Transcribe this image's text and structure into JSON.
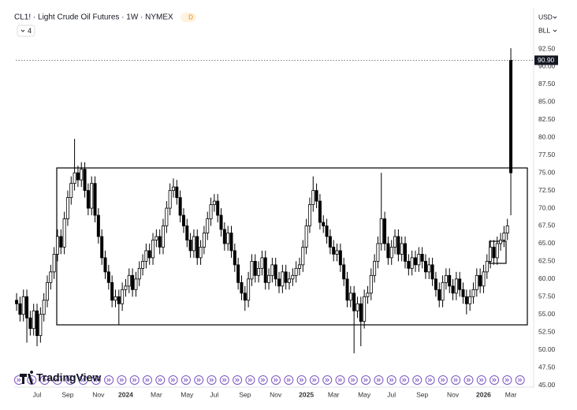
{
  "header": {
    "title": "CL1! · Light Crude Oil Futures · 1W · NYMEX",
    "badge": "D",
    "indicators": "4",
    "currency": "USD",
    "unit": "BLL",
    "logo": "TradingView"
  },
  "chart_data": {
    "type": "candlestick",
    "color": "#000000",
    "open": [
      57.0,
      56.5,
      55.0,
      57.5,
      54.5,
      53.0,
      55.5,
      52.0,
      55.0,
      57.0,
      59.5,
      61.0,
      63.5,
      66.0,
      64.5,
      68.5,
      71.5,
      73.5,
      75.0,
      74.0,
      75.5,
      72.5,
      70.0,
      73.5,
      69.0,
      66.0,
      63.0,
      61.0,
      59.5,
      57.0,
      57.5,
      56.5,
      58.5,
      59.0,
      60.5,
      58.5,
      60.0,
      61.5,
      62.5,
      64.0,
      63.0,
      65.5,
      66.0,
      64.5,
      67.5,
      70.0,
      72.5,
      73.0,
      71.5,
      69.0,
      67.5,
      65.5,
      64.0,
      66.0,
      63.0,
      64.5,
      66.5,
      68.5,
      70.5,
      71.0,
      69.0,
      67.0,
      65.0,
      66.5,
      64.0,
      62.0,
      59.5,
      58.0,
      57.0,
      60.0,
      62.5,
      60.5,
      61.5,
      63.0,
      59.5,
      60.5,
      62.0,
      60.0,
      59.0,
      61.0,
      59.5,
      60.0,
      60.5,
      61.5,
      62.0,
      64.5,
      67.5,
      70.5,
      72.5,
      71.0,
      68.0,
      67.5,
      66.0,
      64.5,
      63.5,
      64.0,
      62.0,
      60.0,
      57.0,
      58.0,
      55.5,
      56.5,
      54.0,
      57.5,
      58.0,
      60.5,
      62.5,
      65.0,
      68.5,
      65.0,
      63.0,
      64.5,
      66.0,
      63.5,
      65.0,
      62.5,
      61.5,
      63.0,
      62.0,
      63.5,
      62.5,
      61.0,
      62.0,
      60.0,
      58.5,
      57.0,
      59.5,
      60.5,
      59.0,
      58.0,
      60.0,
      58.5,
      57.5,
      56.5,
      57.5,
      58.5,
      60.5,
      59.0,
      61.0,
      62.5,
      64.5,
      63.0,
      65.0,
      65.5,
      66.5,
      75.0
    ],
    "high": [
      58,
      57.5,
      58.5,
      58.5,
      55.5,
      56.5,
      56.5,
      56,
      58,
      60.5,
      62,
      64.5,
      67,
      67,
      69.5,
      72.5,
      74.5,
      79.8,
      76,
      76.5,
      76.5,
      73.5,
      74.5,
      74.5,
      70,
      67,
      64,
      62,
      60.5,
      58.5,
      58.5,
      59.5,
      60,
      61.5,
      61.5,
      61,
      62.5,
      63.5,
      65,
      65,
      66.5,
      67,
      67,
      68.5,
      71,
      73.5,
      74.2,
      74,
      72.5,
      70,
      68.5,
      66.5,
      67,
      67,
      65.5,
      67.5,
      69.5,
      71.5,
      72,
      72,
      70,
      68,
      67.5,
      67.5,
      65,
      63,
      60.5,
      59,
      61,
      63.5,
      63.5,
      62.5,
      64,
      64,
      61.5,
      63,
      63,
      61,
      62,
      62,
      61,
      61.5,
      62.5,
      63,
      65.5,
      68.5,
      71.5,
      74.5,
      73.5,
      72,
      69,
      68.5,
      67,
      65.5,
      65,
      65,
      63,
      61,
      59,
      59,
      57.5,
      57.5,
      58.5,
      59,
      61.5,
      63.5,
      66,
      75,
      69.5,
      66,
      65.5,
      67,
      67,
      66,
      66,
      63.5,
      64,
      64,
      64.5,
      64.5,
      63.5,
      63,
      63,
      61,
      59.5,
      60.5,
      61.5,
      61.5,
      60,
      61,
      61,
      59.5,
      58.5,
      58.5,
      59.5,
      61.5,
      61.5,
      62,
      63.5,
      65.5,
      65.5,
      66,
      66.5,
      67.5,
      68.5,
      92.6
    ],
    "low": [
      55.5,
      54,
      54,
      51,
      52,
      52,
      50.5,
      51,
      54,
      56,
      58.5,
      60,
      62.5,
      63.5,
      63.5,
      67.5,
      70.5,
      72.5,
      73,
      73,
      71.5,
      69,
      69,
      68,
      65,
      62,
      60,
      58.5,
      56,
      56,
      53.5,
      55.5,
      57.5,
      58,
      57.5,
      57.5,
      59,
      60.5,
      61.5,
      62,
      62,
      64.5,
      63.5,
      63.5,
      66.5,
      69,
      71.5,
      70.5,
      68,
      66.5,
      64.5,
      63,
      63,
      62,
      62,
      63.5,
      65.5,
      67.5,
      69.5,
      68,
      66,
      64,
      64,
      63,
      61,
      58.5,
      57,
      55.5,
      56,
      59,
      59.5,
      59.5,
      60.5,
      58.5,
      58.5,
      59.5,
      59,
      58,
      58,
      58.5,
      58.5,
      59,
      59.5,
      60.5,
      61,
      63.5,
      66.5,
      69.5,
      70,
      67,
      66.5,
      65,
      63.5,
      62.5,
      62.5,
      61,
      59,
      56,
      56,
      49.5,
      54.5,
      50.5,
      53,
      56.5,
      57,
      59.5,
      61.5,
      64,
      64,
      62,
      62,
      63.5,
      62.5,
      62.5,
      61.5,
      60.5,
      60.5,
      61,
      61,
      61.5,
      60,
      60,
      59,
      57.5,
      56,
      56,
      58.5,
      58,
      57,
      57,
      57.5,
      56.5,
      55,
      55.5,
      56.5,
      57.5,
      58,
      58,
      60,
      61.5,
      62,
      62,
      64,
      64.5,
      65.5,
      69
    ],
    "close": [
      56.5,
      55.0,
      57.5,
      54.5,
      53.0,
      55.5,
      52.0,
      55.0,
      57.0,
      59.5,
      61.0,
      63.5,
      66.0,
      64.5,
      68.5,
      71.5,
      73.5,
      75.0,
      74.0,
      75.5,
      72.5,
      70.0,
      73.5,
      69.0,
      66.0,
      63.0,
      61.0,
      59.5,
      57.0,
      57.5,
      56.5,
      58.5,
      59.0,
      60.5,
      58.5,
      60.0,
      61.5,
      62.5,
      64.0,
      63.0,
      65.5,
      66.0,
      64.5,
      67.5,
      70.0,
      72.5,
      73.0,
      71.5,
      69.0,
      67.5,
      65.5,
      64.0,
      66.0,
      63.0,
      64.5,
      66.5,
      68.5,
      70.5,
      71.0,
      69.0,
      67.0,
      65.0,
      66.5,
      64.0,
      62.0,
      59.5,
      58.0,
      57.0,
      60.0,
      62.5,
      60.5,
      61.5,
      63.0,
      59.5,
      60.5,
      62.0,
      60.0,
      59.0,
      61.0,
      59.5,
      60.0,
      60.5,
      61.5,
      62.0,
      64.5,
      67.5,
      70.5,
      72.5,
      71.0,
      68.0,
      67.5,
      66.0,
      64.5,
      63.5,
      64.0,
      62.0,
      60.0,
      57.0,
      58.0,
      55.5,
      56.5,
      54.0,
      57.5,
      58.0,
      60.5,
      62.5,
      65.0,
      68.5,
      65.0,
      63.0,
      64.5,
      66.0,
      63.5,
      65.0,
      62.5,
      61.5,
      63.0,
      62.0,
      63.5,
      62.5,
      61.0,
      62.0,
      60.0,
      58.5,
      57.0,
      59.5,
      60.5,
      59.0,
      58.0,
      60.0,
      58.5,
      57.5,
      56.5,
      57.5,
      58.5,
      60.5,
      59.0,
      61.0,
      62.5,
      64.5,
      63.0,
      65.0,
      65.5,
      66.5,
      67.5,
      90.9
    ],
    "price_label": {
      "value": 90.9,
      "label": "90.90"
    },
    "xlim": [
      -0.25,
      151
    ],
    "xticks": [
      {
        "value": 6,
        "label": "Jul"
      },
      {
        "value": 15,
        "label": "Sep"
      },
      {
        "value": 24,
        "label": "Nov"
      },
      {
        "value": 32,
        "label": "2024"
      },
      {
        "value": 41,
        "label": "Mar"
      },
      {
        "value": 50,
        "label": "May"
      },
      {
        "value": 58,
        "label": "Jul"
      },
      {
        "value": 67,
        "label": "Sep"
      },
      {
        "value": 76,
        "label": "Nov"
      },
      {
        "value": 85,
        "label": "2025"
      },
      {
        "value": 93,
        "label": "Mar"
      },
      {
        "value": 102,
        "label": "May"
      },
      {
        "value": 110,
        "label": "Jul"
      },
      {
        "value": 119,
        "label": "Sep"
      },
      {
        "value": 128,
        "label": "Nov"
      },
      {
        "value": 137,
        "label": "2026"
      },
      {
        "value": 145,
        "label": "Mar"
      }
    ],
    "ylim": [
      45,
      95
    ],
    "yticks": [
      {
        "value": 45,
        "label": "45.00"
      },
      {
        "value": 47.5,
        "label": "47.50"
      },
      {
        "value": 50,
        "label": "50.00"
      },
      {
        "value": 52.5,
        "label": "52.50"
      },
      {
        "value": 55,
        "label": "55.00"
      },
      {
        "value": 57.5,
        "label": "57.50"
      },
      {
        "value": 60,
        "label": "60.00"
      },
      {
        "value": 62.5,
        "label": "62.50"
      },
      {
        "value": 65,
        "label": "65.00"
      },
      {
        "value": 67.5,
        "label": "67.50"
      },
      {
        "value": 70,
        "label": "70.00"
      },
      {
        "value": 72.5,
        "label": "72.50"
      },
      {
        "value": 75,
        "label": "75.00"
      },
      {
        "value": 77.5,
        "label": "77.50"
      },
      {
        "value": 80,
        "label": "80.00"
      },
      {
        "value": 82.5,
        "label": "82.50"
      },
      {
        "value": 85,
        "label": "85.00"
      },
      {
        "value": 87.5,
        "label": "87.50"
      },
      {
        "value": 90,
        "label": "90.00"
      },
      {
        "value": 92.5,
        "label": "92.50"
      }
    ],
    "grid": false
  }
}
